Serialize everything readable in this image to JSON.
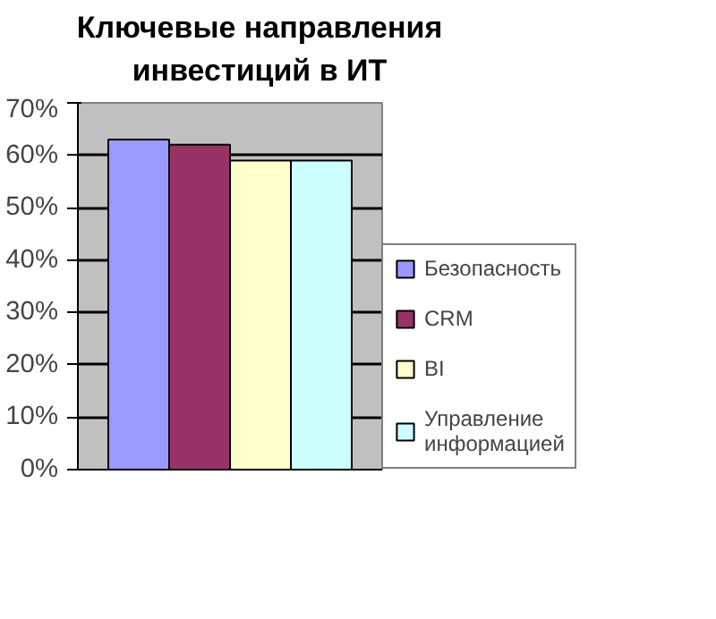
{
  "chart_data": {
    "type": "bar",
    "title": "Ключевые направления\nинвестиций в ИТ",
    "categories": [
      null
    ],
    "series": [
      {
        "name": "Безопасность",
        "color": "#9999ff",
        "values": [
          63
        ]
      },
      {
        "name": "CRM",
        "color": "#993366",
        "values": [
          62
        ]
      },
      {
        "name": "BI",
        "color": "#ffffcc",
        "values": [
          59
        ]
      },
      {
        "name": "Управление\nинформацией",
        "color": "#ccffff",
        "values": [
          59
        ]
      }
    ],
    "ylim": [
      0,
      70
    ],
    "yticks": [
      {
        "value": 0,
        "label": "0%"
      },
      {
        "value": 10,
        "label": "10%"
      },
      {
        "value": 20,
        "label": "20%"
      },
      {
        "value": 30,
        "label": "30%"
      },
      {
        "value": 40,
        "label": "40%"
      },
      {
        "value": 50,
        "label": "50%"
      },
      {
        "value": 60,
        "label": "60%"
      },
      {
        "value": 70,
        "label": "70%"
      }
    ],
    "grid": "y",
    "legend": "right"
  }
}
